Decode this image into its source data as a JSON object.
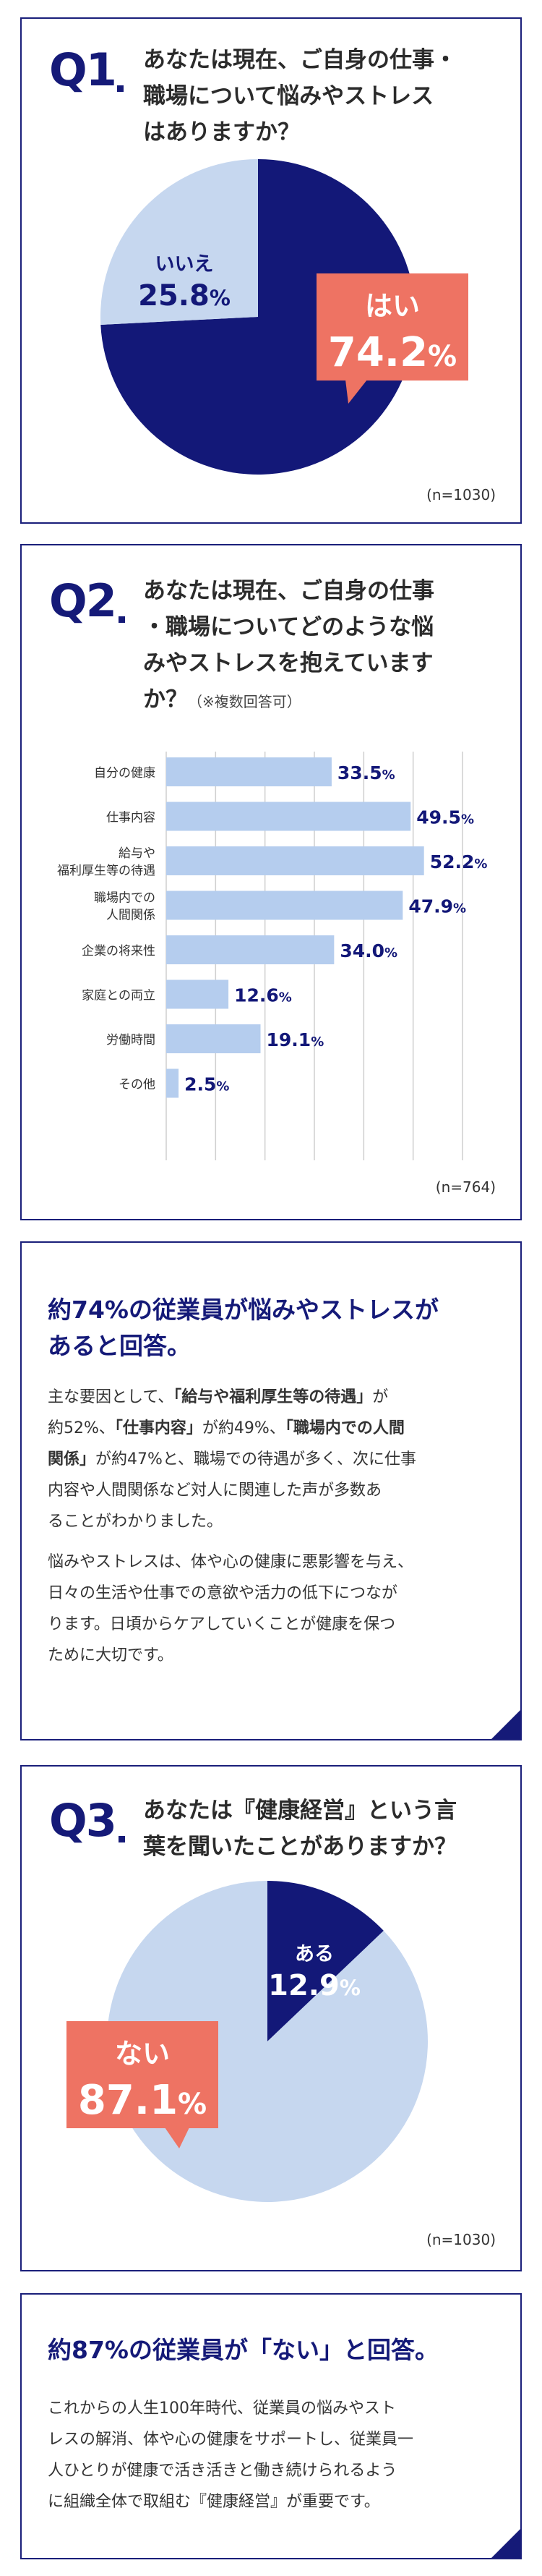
{
  "q1": {
    "number": "Q1",
    "question": [
      "あなたは現在、ご自身の仕事・",
      "職場について悩みやストレス",
      "はありますか？"
    ],
    "n_label": "(n=1030)"
  },
  "q2": {
    "number": "Q2",
    "question": [
      "あなたは現在、ご自身の仕事",
      "・職場についてどのような悩",
      "みやストレスを抱えています"
    ],
    "question_last": "か？",
    "note": "（※複数回答可）",
    "n_label": "(n=764)"
  },
  "summary1": {
    "headline": [
      "約74%の従業員が悩みやストレスが",
      "あると回答。"
    ],
    "p1": [
      [
        {
          "t": "主な要因として、",
          "b": false
        },
        {
          "t": "「給与や福利厚生等の待遇」",
          "b": true
        },
        {
          "t": "が",
          "b": false
        }
      ],
      [
        {
          "t": "約52%、",
          "b": false
        },
        {
          "t": "「仕事内容」",
          "b": true
        },
        {
          "t": "が約49%、",
          "b": false
        },
        {
          "t": "「職場内での人間",
          "b": true
        }
      ],
      [
        {
          "t": "関係」",
          "b": true
        },
        {
          "t": "が約47%と、職場での待遇が多く、次に仕事",
          "b": false
        }
      ],
      [
        {
          "t": "内容や人間関係など対人に関連した声が多数あ",
          "b": false
        }
      ],
      [
        {
          "t": "ることがわかりました。",
          "b": false
        }
      ]
    ],
    "p2": [
      "悩みやストレスは、体や心の健康に悪影響を与え、",
      "日々の生活や仕事での意欲や活力の低下につなが",
      "ります。日頃からケアしていくことが健康を保つ",
      "ために大切です。"
    ]
  },
  "q3": {
    "number": "Q3",
    "question": [
      "あなたは『健康経営』という言",
      "葉を聞いたことがありますか？"
    ],
    "n_label": "(n=1030)"
  },
  "summary2": {
    "headline": "約87%の従業員が「ない」と回答。",
    "p": [
      "これからの人生100年時代、従業員の悩みやスト",
      "レスの解消、体や心の健康をサポートし、従業員一",
      "人ひとりが健康で活き活きと働き続けられるよう",
      "に組織全体で取組む『健康経営』が重要です。"
    ]
  },
  "colors": {
    "navy": "#131878",
    "light_blue": "#c6d7ef",
    "bar_blue": "#b5cdee",
    "coral": "#ee7363",
    "grid": "#cfcfcf"
  },
  "chart_data": [
    {
      "type": "pie",
      "labels": [
        "はい",
        "いいえ"
      ],
      "values": [
        74.2,
        25.8
      ],
      "value_labels": [
        "74.2%",
        "25.8%"
      ],
      "colors": [
        "#131878",
        "#c6d7ef"
      ]
    },
    {
      "type": "bar",
      "orientation": "horizontal",
      "categories": [
        "自分の健康",
        "仕事内容",
        "給与や\n福利厚生等の待遇",
        "職場内での\n人間関係",
        "企業の将来性",
        "家庭との両立",
        "労働時間",
        "その他"
      ],
      "values": [
        33.5,
        49.5,
        52.2,
        47.9,
        34.0,
        12.6,
        19.1,
        2.5
      ],
      "value_labels": [
        "33.5%",
        "49.5%",
        "52.2%",
        "47.9%",
        "34.0%",
        "12.6%",
        "19.1%",
        "2.5%"
      ],
      "xlim": [
        0,
        60
      ],
      "grid": true,
      "color": "#b5cdee"
    },
    {
      "type": "pie",
      "labels": [
        "ある",
        "ない"
      ],
      "values": [
        12.9,
        87.1
      ],
      "value_labels": [
        "12.9%",
        "87.1%"
      ],
      "colors": [
        "#131878",
        "#c6d7ef"
      ]
    }
  ]
}
